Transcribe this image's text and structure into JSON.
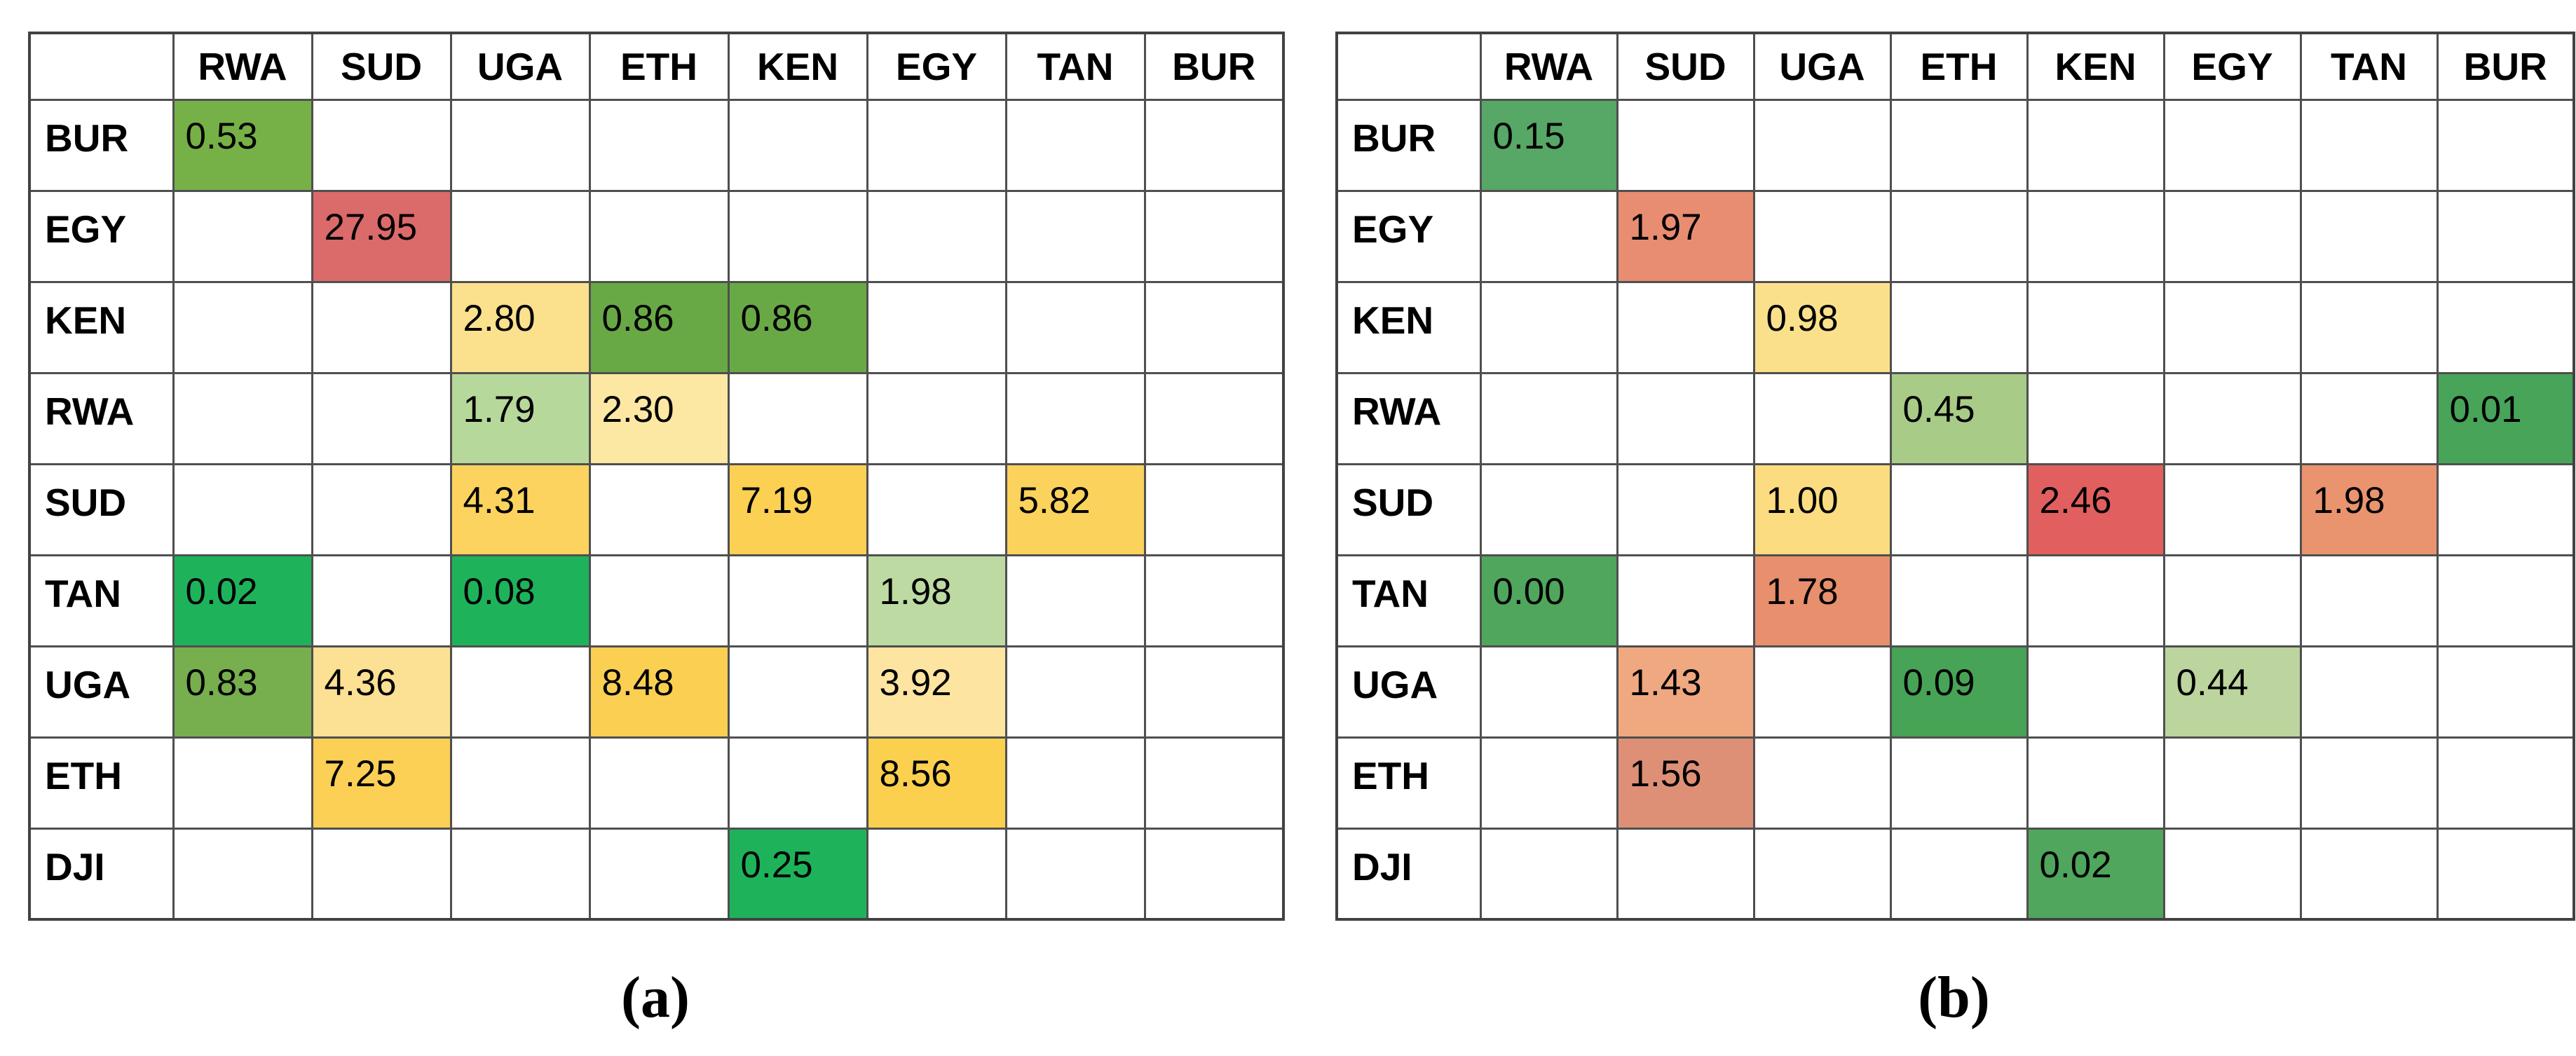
{
  "chart_data": [
    {
      "type": "heatmap",
      "panel": "a",
      "title": "(a)",
      "x_labels": [
        "RWA",
        "SUD",
        "UGA",
        "ETH",
        "KEN",
        "EGY",
        "TAN",
        "BUR"
      ],
      "y_labels": [
        "BUR",
        "EGY",
        "KEN",
        "RWA",
        "SUD",
        "TAN",
        "UGA",
        "ETH",
        "DJI"
      ],
      "values": [
        [
          "0.53",
          "",
          "",
          "",
          "",
          "",
          "",
          ""
        ],
        [
          "",
          "27.95",
          "",
          "",
          "",
          "",
          "",
          ""
        ],
        [
          "",
          "",
          "2.80",
          "0.86",
          "0.86",
          "",
          "",
          ""
        ],
        [
          "",
          "",
          "1.79",
          "2.30",
          "",
          "",
          "",
          ""
        ],
        [
          "",
          "",
          "4.31",
          "",
          "7.19",
          "",
          "5.82",
          ""
        ],
        [
          "0.02",
          "",
          "0.08",
          "",
          "",
          "1.98",
          "",
          ""
        ],
        [
          "0.83",
          "4.36",
          "",
          "8.48",
          "",
          "3.92",
          "",
          ""
        ],
        [
          "",
          "7.25",
          "",
          "",
          "",
          "8.56",
          "",
          ""
        ],
        [
          "",
          "",
          "",
          "",
          "0.25",
          "",
          "",
          ""
        ]
      ],
      "cell_colors": [
        [
          "#76b147",
          "",
          "",
          "",
          "",
          "",
          "",
          ""
        ],
        [
          "",
          "#db6a6a",
          "",
          "",
          "",
          "",
          "",
          ""
        ],
        [
          "",
          "",
          "#fbe08d",
          "#68a945",
          "#68a945",
          "",
          "",
          ""
        ],
        [
          "",
          "",
          "#b7d89b",
          "#fce8a2",
          "",
          "",
          "",
          ""
        ],
        [
          "",
          "",
          "#fbd35e",
          "",
          "#fbd053",
          "",
          "#fbd25b",
          ""
        ],
        [
          "#1eb35a",
          "",
          "#1eb35a",
          "",
          "",
          "#bcdaa2",
          "",
          ""
        ],
        [
          "#77ae4e",
          "#fce093",
          "",
          "#fbd052",
          "",
          "#fde4a0",
          "",
          ""
        ],
        [
          "",
          "#fbd055",
          "",
          "",
          "",
          "#fbd04e",
          "",
          ""
        ],
        [
          "",
          "",
          "",
          "",
          "#1eb35a",
          "",
          "",
          ""
        ]
      ],
      "header_bg": "#c9c9c7",
      "grid_color": "#4f4f4f",
      "legend_position": "none"
    },
    {
      "type": "heatmap",
      "panel": "b",
      "title": "(b)",
      "x_labels": [
        "RWA",
        "SUD",
        "UGA",
        "ETH",
        "KEN",
        "EGY",
        "TAN",
        "BUR"
      ],
      "y_labels": [
        "BUR",
        "EGY",
        "KEN",
        "RWA",
        "SUD",
        "TAN",
        "UGA",
        "ETH",
        "DJI"
      ],
      "values": [
        [
          "0.15",
          "",
          "",
          "",
          "",
          "",
          "",
          ""
        ],
        [
          "",
          "1.97",
          "",
          "",
          "",
          "",
          "",
          ""
        ],
        [
          "",
          "",
          "0.98",
          "",
          "",
          "",
          "",
          ""
        ],
        [
          "",
          "",
          "",
          "0.45",
          "",
          "",
          "",
          "0.01"
        ],
        [
          "",
          "",
          "1.00",
          "",
          "2.46",
          "",
          "1.98",
          ""
        ],
        [
          "0.00",
          "",
          "1.78",
          "",
          "",
          "",
          "",
          ""
        ],
        [
          "",
          "1.43",
          "",
          "0.09",
          "",
          "0.44",
          "",
          ""
        ],
        [
          "",
          "1.56",
          "",
          "",
          "",
          "",
          "",
          ""
        ],
        [
          "",
          "",
          "",
          "",
          "0.02",
          "",
          "",
          ""
        ]
      ],
      "cell_colors": [
        [
          "#57a766",
          "",
          "",
          "",
          "",
          "",
          "",
          ""
        ],
        [
          "",
          "#e88d71",
          "",
          "",
          "",
          "",
          "",
          ""
        ],
        [
          "",
          "",
          "#fbe08c",
          "",
          "",
          "",
          "",
          ""
        ],
        [
          "",
          "",
          "",
          "#a8cc87",
          "",
          "",
          "",
          "#47a458"
        ],
        [
          "",
          "",
          "#fbdc80",
          "",
          "#e15f5f",
          "",
          "#e9946f",
          ""
        ],
        [
          "#4fa65c",
          "",
          "#e88f6e",
          "",
          "",
          "",
          "",
          ""
        ],
        [
          "",
          "#f0a880",
          "",
          "#47a356",
          "",
          "#bcd49e",
          "",
          ""
        ],
        [
          "",
          "#de9077",
          "",
          "",
          "",
          "",
          "",
          ""
        ],
        [
          "",
          "",
          "",
          "",
          "#4fa65c",
          "",
          "",
          ""
        ]
      ],
      "header_bg": "#c9c9c7",
      "grid_color": "#4f4f4f",
      "legend_position": "none"
    }
  ]
}
